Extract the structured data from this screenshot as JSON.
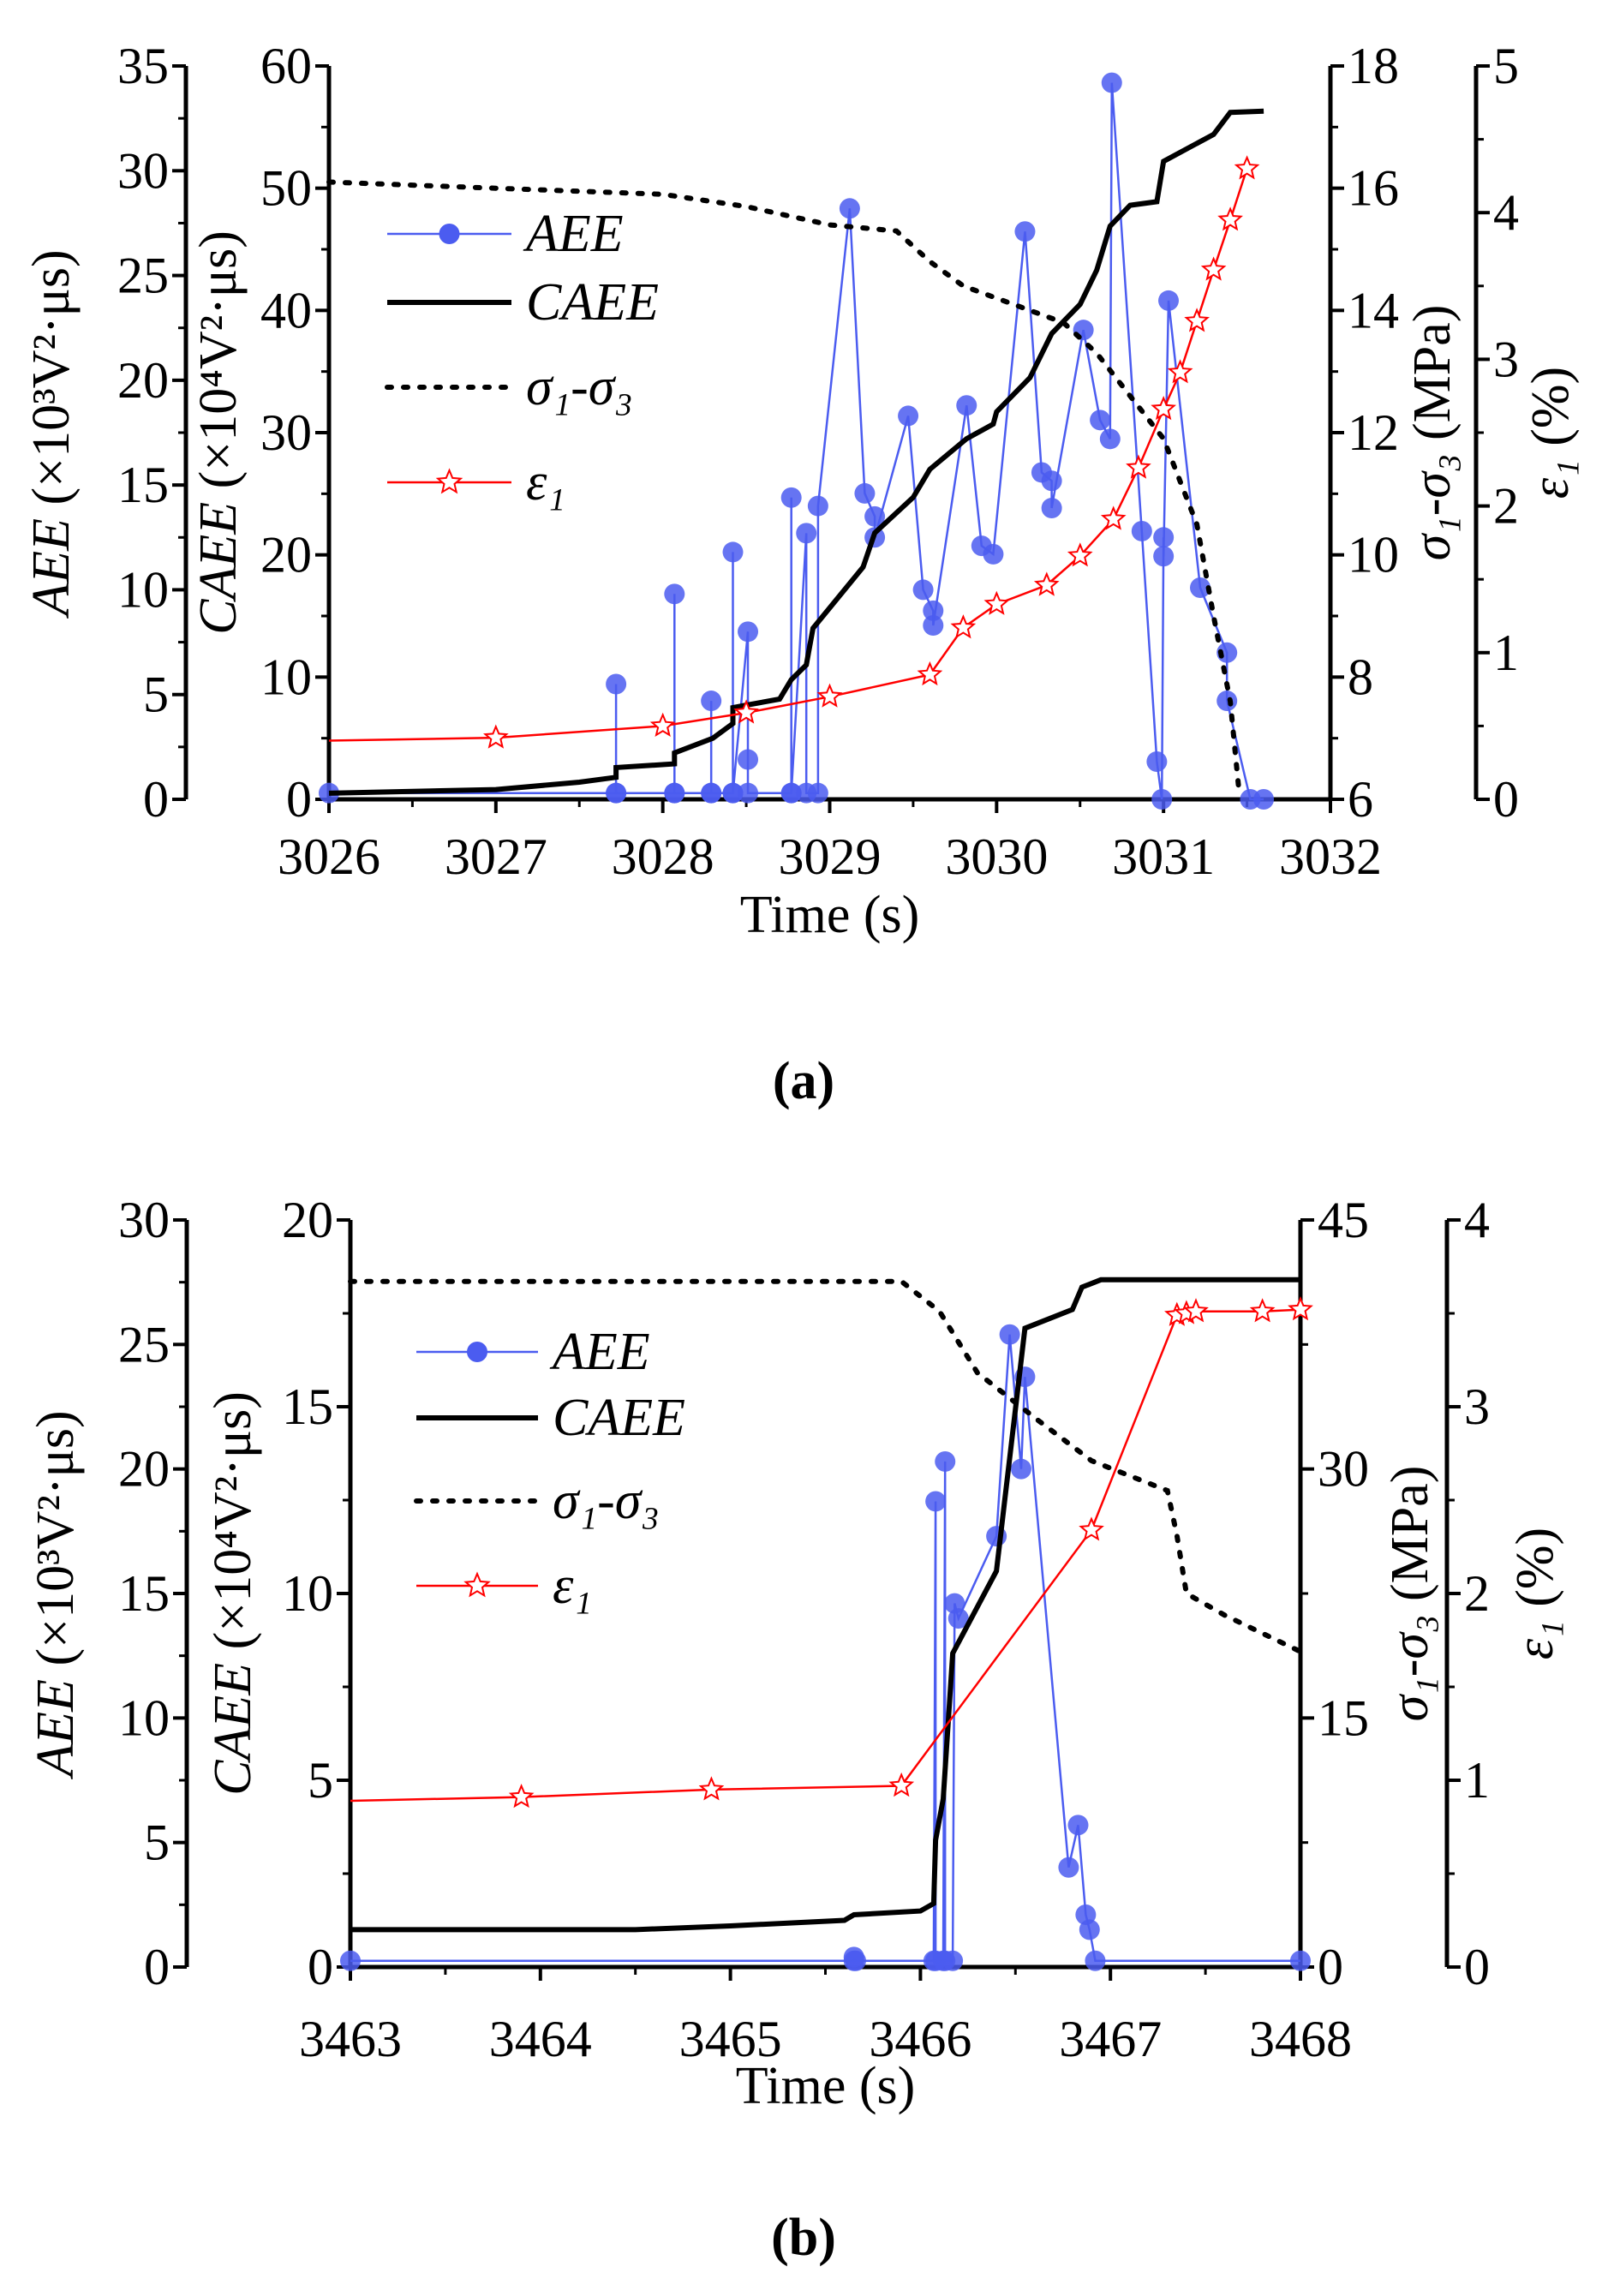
{
  "chart_data": [
    {
      "type": "line",
      "panel_label": "(a)",
      "xlabel": "Time (s)",
      "xlim": [
        3026,
        3032
      ],
      "xticks": [
        3026,
        3027,
        3028,
        3029,
        3030,
        3031,
        3032
      ],
      "axes": {
        "aee": {
          "label_var": "AEE",
          "label_unit": " (×10³V²·μs)",
          "lim": [
            0,
            35
          ],
          "ticks": [
            0,
            5,
            10,
            15,
            20,
            25,
            30,
            35
          ]
        },
        "caee": {
          "label_var": "CAEE",
          "label_unit": " (×10⁴V²·μs)",
          "lim": [
            0,
            60
          ],
          "ticks": [
            0,
            10,
            20,
            30,
            40,
            50,
            60
          ]
        },
        "sigma": {
          "label_var": "σ₁-σ₃",
          "label_unit": " (MPa)",
          "lim": [
            6,
            18
          ],
          "ticks": [
            6,
            8,
            10,
            12,
            14,
            16,
            18
          ]
        },
        "eps": {
          "label_var": "ε₁",
          "label_unit": " (%)",
          "lim": [
            0,
            5
          ],
          "ticks": [
            0,
            1,
            2,
            3,
            4,
            5
          ]
        }
      },
      "legend": [
        "AEE",
        "CAEE",
        "σ₁-σ₃",
        "ε₁"
      ],
      "legend_position": "top-left",
      "colors": {
        "aee": "#4b5cf0",
        "caee": "#000000",
        "sigma": "#000000",
        "eps": "#ff0000"
      },
      "series": [
        {
          "name": "AEE",
          "axis": "aee",
          "x": [
            3026,
            3027.72,
            3027.72,
            3027.72,
            3028.07,
            3028.07,
            3028.07,
            3028.29,
            3028.29,
            3028.29,
            3028.42,
            3028.42,
            3028.42,
            3028.51,
            3028.51,
            3028.51,
            3028.77,
            3028.77,
            3028.77,
            3028.86,
            3028.86,
            3028.93,
            3028.93,
            3029.12,
            3029.21,
            3029.27,
            3029.27,
            3029.47,
            3029.56,
            3029.62,
            3029.62,
            3029.82,
            3029.91,
            3029.98,
            3030.17,
            3030.27,
            3030.33,
            3030.33,
            3030.52,
            3030.62,
            3030.68,
            3030.69,
            3030.87,
            3030.96,
            3030.99,
            3031.0,
            3031.0,
            3031.03,
            3031.22,
            3031.38,
            3031.38,
            3031.52,
            3031.6
          ],
          "y": [
            0.3,
            0.3,
            5.5,
            0.3,
            0.3,
            9.8,
            0.3,
            0.3,
            4.7,
            0.3,
            0.3,
            11.8,
            0.3,
            8.0,
            1.9,
            0.3,
            0.3,
            14.4,
            0.3,
            12.7,
            0.3,
            0.3,
            14.0,
            28.2,
            14.6,
            13.5,
            12.5,
            18.3,
            10.0,
            9.0,
            8.3,
            18.8,
            12.1,
            11.7,
            27.1,
            15.6,
            15.2,
            13.9,
            22.4,
            18.1,
            17.2,
            34.2,
            12.8,
            1.8,
            0,
            12.5,
            11.6,
            23.8,
            10.1,
            7.0,
            4.7,
            0,
            0
          ]
        },
        {
          "name": "CAEE",
          "axis": "caee",
          "x": [
            3026,
            3027,
            3027.5,
            3027.72,
            3027.72,
            3028.07,
            3028.07,
            3028.3,
            3028.42,
            3028.42,
            3028.5,
            3028.7,
            3028.77,
            3028.86,
            3028.9,
            3029.2,
            3029.27,
            3029.5,
            3029.6,
            3029.82,
            3029.98,
            3030.0,
            3030.2,
            3030.33,
            3030.5,
            3030.6,
            3030.68,
            3030.8,
            3030.96,
            3031.0,
            3031.3,
            3031.4,
            3031.6
          ],
          "y": [
            0.5,
            0.8,
            1.4,
            1.8,
            2.6,
            2.9,
            3.8,
            5.0,
            6.2,
            7.5,
            7.7,
            8.2,
            9.8,
            11.0,
            14.0,
            19.0,
            21.8,
            24.7,
            27.0,
            29.5,
            30.7,
            31.7,
            34.5,
            38.1,
            40.5,
            43.3,
            46.9,
            48.6,
            48.9,
            52.2,
            54.4,
            56.2,
            56.3
          ]
        },
        {
          "name": "σ₁-σ₃",
          "axis": "sigma",
          "x": [
            3026,
            3027,
            3028,
            3028.5,
            3029,
            3029.4,
            3029.6,
            3029.8,
            3030.1,
            3030.4,
            3030.6,
            3030.8,
            3031.0,
            3031.2,
            3031.3,
            3031.4,
            3031.45
          ],
          "y": [
            16.1,
            16.0,
            15.9,
            15.7,
            15.4,
            15.3,
            14.8,
            14.4,
            14.1,
            13.8,
            13.3,
            12.6,
            11.9,
            10.5,
            9.0,
            7.6,
            6.2
          ]
        },
        {
          "name": "ε₁",
          "axis": "eps",
          "x": [
            3026,
            3027,
            3028,
            3028.5,
            3029,
            3029.6,
            3029.8,
            3030,
            3030.3,
            3030.5,
            3030.7,
            3030.85,
            3031.0,
            3031.1,
            3031.2,
            3031.3,
            3031.4,
            3031.5
          ],
          "y": [
            0.4,
            0.42,
            0.5,
            0.59,
            0.7,
            0.85,
            1.17,
            1.33,
            1.46,
            1.66,
            1.91,
            2.26,
            2.66,
            2.91,
            3.26,
            3.61,
            3.95,
            4.3
          ]
        }
      ]
    },
    {
      "type": "line",
      "panel_label": "(b)",
      "xlabel": "Time (s)",
      "xlim": [
        3463,
        3468
      ],
      "xticks": [
        3463,
        3464,
        3465,
        3466,
        3467,
        3468
      ],
      "axes": {
        "aee": {
          "label_var": "AEE",
          "label_unit": " (×10³V²·μs)",
          "lim": [
            0,
            30
          ],
          "ticks": [
            0,
            5,
            10,
            15,
            20,
            25,
            30
          ]
        },
        "caee": {
          "label_var": "CAEE",
          "label_unit": " (×10⁴V²·μs)",
          "lim": [
            0,
            20
          ],
          "ticks": [
            0,
            5,
            10,
            15,
            20
          ]
        },
        "sigma": {
          "label_var": "σ₁-σ₃",
          "label_unit": " (MPa)",
          "lim": [
            0,
            45
          ],
          "ticks": [
            0,
            15,
            30,
            45
          ]
        },
        "eps": {
          "label_var": "ε₁",
          "label_unit": " (%)",
          "lim": [
            0,
            4
          ],
          "ticks": [
            0,
            1,
            2,
            3,
            4
          ]
        }
      },
      "legend": [
        "AEE",
        "CAEE",
        "σ₁-σ₃",
        "ε₁"
      ],
      "legend_position": "top-left",
      "colors": {
        "aee": "#4b5cf0",
        "caee": "#000000",
        "sigma": "#000000",
        "eps": "#ff0000"
      },
      "series": [
        {
          "name": "AEE",
          "axis": "aee",
          "x": [
            3463,
            3465.65,
            3465.65,
            3465.66,
            3466.07,
            3466.08,
            3466.08,
            3466.12,
            3466.13,
            3466.13,
            3466.17,
            3466.18,
            3466.2,
            3466.4,
            3466.47,
            3466.53,
            3466.55,
            3466.78,
            3466.83,
            3466.87,
            3466.89,
            3466.92,
            3468
          ],
          "y": [
            0.25,
            0.25,
            0.4,
            0.25,
            0.25,
            18.7,
            0.25,
            0.25,
            20.3,
            0.25,
            0.25,
            14.6,
            14.0,
            17.3,
            25.4,
            20.0,
            23.7,
            4.0,
            5.7,
            2.1,
            1.5,
            0.25,
            0.25
          ]
        },
        {
          "name": "CAEE",
          "axis": "caee",
          "x": [
            3463,
            3464.5,
            3465,
            3465.6,
            3465.65,
            3466,
            3466.07,
            3466.08,
            3466.12,
            3466.17,
            3466.4,
            3466.55,
            3466.8,
            3466.85,
            3466.95,
            3468
          ],
          "y": [
            1.0,
            1.0,
            1.1,
            1.25,
            1.4,
            1.5,
            1.7,
            3.4,
            4.5,
            8.4,
            10.6,
            17.1,
            17.6,
            18.2,
            18.4,
            18.4
          ]
        },
        {
          "name": "σ₁-σ₃",
          "axis": "sigma",
          "x": [
            3463,
            3465.9,
            3466.1,
            3466.3,
            3466.6,
            3466.9,
            3467.3,
            3467.35,
            3467.4,
            3467.6,
            3468
          ],
          "y": [
            41.3,
            41.3,
            39.5,
            35.8,
            33.1,
            30.5,
            28.7,
            26,
            22.5,
            21.2,
            19.0
          ]
        },
        {
          "name": "ε₁",
          "axis": "eps",
          "x": [
            3463,
            3463.9,
            3464.9,
            3465.9,
            3466.9,
            3467.35,
            3467.4,
            3467.45,
            3467.8,
            3468
          ],
          "y": [
            0.89,
            0.91,
            0.95,
            0.97,
            2.34,
            3.49,
            3.5,
            3.51,
            3.51,
            3.52
          ]
        }
      ]
    }
  ]
}
